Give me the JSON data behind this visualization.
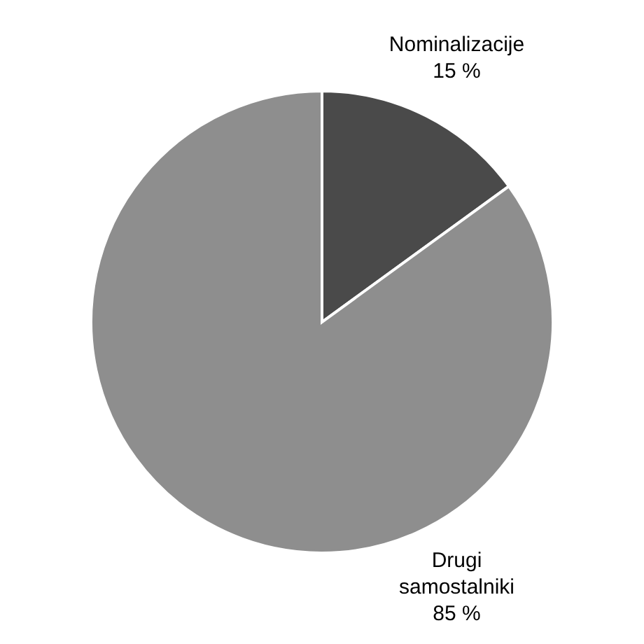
{
  "chart_data": {
    "type": "pie",
    "categories": [
      "Nominalizacije",
      "Drugi samostalniki"
    ],
    "values": [
      15,
      85
    ],
    "colors": [
      "#4a4a4a",
      "#8e8e8e"
    ],
    "value_labels": [
      "15 %",
      "85 %"
    ]
  }
}
